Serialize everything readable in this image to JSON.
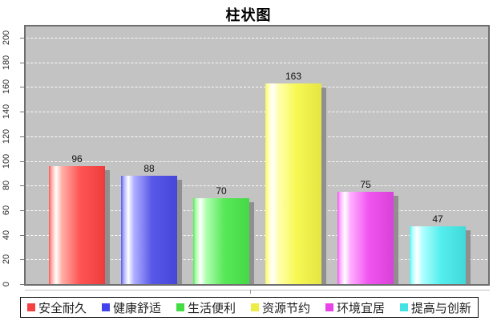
{
  "title": "柱状图",
  "chart_data": {
    "type": "bar",
    "title": "柱状图",
    "categories": [
      "安全耐久",
      "健康舒适",
      "生活便利",
      "资源节约",
      "环境宜居",
      "提高与创新"
    ],
    "values": [
      96,
      88,
      70,
      163,
      75,
      47
    ],
    "xlabel": "",
    "ylabel": "",
    "ylim": [
      0,
      200
    ],
    "yticks": [
      "0",
      "20",
      "40",
      "60",
      "80",
      "100",
      "120",
      "140",
      "160",
      "180",
      "200"
    ],
    "grid": "horizontal-dashed-white",
    "plot_background": "#c3c3c3",
    "legend_position": "bottom",
    "series": [
      {
        "label": "安全耐久",
        "value": 96,
        "main": "#ff5555",
        "light": "#ffb0a8",
        "dark": "#ee3c3c",
        "legend": "#f44242"
      },
      {
        "label": "健康舒适",
        "value": 88,
        "main": "#5858e8",
        "light": "#b0b0ff",
        "dark": "#4646d8",
        "legend": "#4343ee"
      },
      {
        "label": "生活便利",
        "value": 70,
        "main": "#58e858",
        "light": "#b0ffb0",
        "dark": "#46d846",
        "legend": "#43dd43"
      },
      {
        "label": "资源节约",
        "value": 163,
        "main": "#f8f855",
        "light": "#ffffb0",
        "dark": "#e4e442",
        "legend": "#eded43"
      },
      {
        "label": "环境宜居",
        "value": 75,
        "main": "#f055f0",
        "light": "#ffb0ff",
        "dark": "#d842d8",
        "legend": "#e843e8"
      },
      {
        "label": "提高与创新",
        "value": 47,
        "main": "#55eeee",
        "light": "#b0ffff",
        "dark": "#42d8d8",
        "legend": "#43e3e3"
      }
    ]
  }
}
